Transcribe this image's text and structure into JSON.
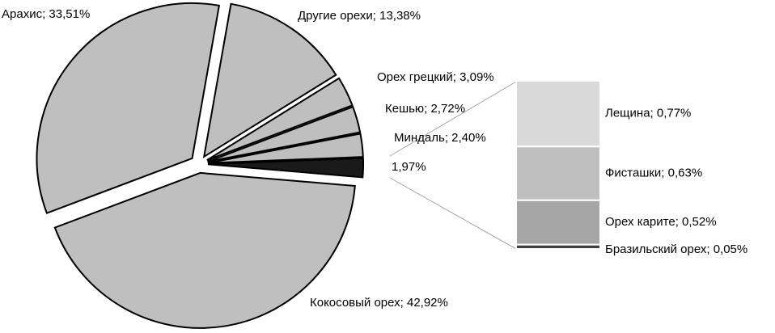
{
  "chart_data": {
    "type": "pie-of-bar",
    "pie": {
      "values": [
        13.38,
        3.09,
        2.72,
        2.4,
        1.97,
        42.92,
        33.51
      ],
      "value_labels": [
        "Другие орехи; 13,38%",
        "Орех грецкий; 3,09%",
        "Кешью; 2,72%",
        "Миндаль; 2,40%",
        "1,97%",
        "Кокосовый орех; 42,92%",
        "Арахис; 33,51%"
      ],
      "colors": [
        "#bfbfbf",
        "#bfbfbf",
        "#bfbfbf",
        "#bfbfbf",
        "#1a1a1a",
        "#bfbfbf",
        "#bfbfbf"
      ]
    },
    "bar": {
      "values": [
        0.77,
        0.63,
        0.52,
        0.05
      ],
      "value_labels": [
        "Лещина; 0,77%",
        "Фисташки; 0,63%",
        "Орех карите; 0,52%",
        "Бразильский орех; 0,05%"
      ],
      "colors": [
        "#d9d9d9",
        "#bfbfbf",
        "#a6a6a6",
        "#404040"
      ]
    }
  }
}
